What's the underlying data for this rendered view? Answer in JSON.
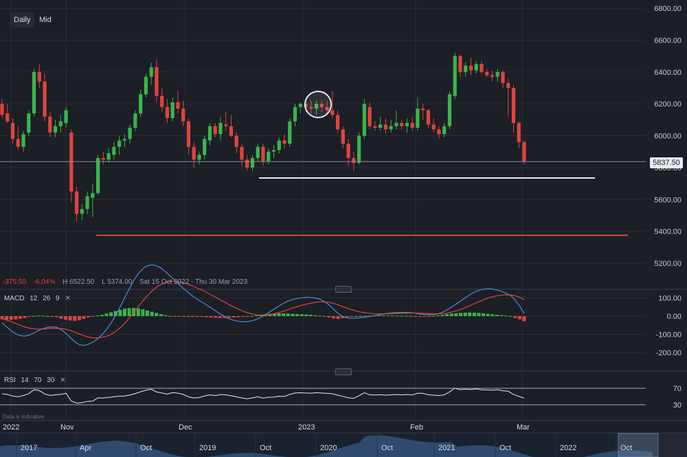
{
  "toolbar": {
    "timeframes": [
      {
        "label": "Daily",
        "active": true
      },
      {
        "label": "Mid",
        "active": false
      }
    ]
  },
  "summary": {
    "change": "-375.50",
    "change_pct": "-6.04%",
    "high": "H 6522.50",
    "low": "L 5374.00",
    "range": "Sat 15 Oct 2022 - Thu 30 Mar 2023",
    "current_price": "5837.50"
  },
  "price_axis": {
    "ticks": [
      "6800.00",
      "6600.00",
      "6400.00",
      "6200.00",
      "6000.00",
      "5800.00",
      "5600.00",
      "5400.00",
      "5200.00"
    ]
  },
  "time_axis": {
    "labels": [
      "2022",
      "Nov",
      "Dec",
      "2023",
      "Feb",
      "Mar"
    ]
  },
  "navigator": {
    "labels": [
      "2017",
      "Apr",
      "Oct",
      "2019",
      "Oct",
      "2020",
      "Oct",
      "2021",
      "Oct",
      "2022",
      "Oct"
    ]
  },
  "macd": {
    "label": "MACD",
    "params": [
      "12",
      "26",
      "9"
    ],
    "ticks": [
      "100.00",
      "0.00",
      "-100.00",
      "-200.00"
    ],
    "hist_range": [
      -60,
      90
    ],
    "histogram": [
      -35,
      -38,
      -40,
      -36,
      -30,
      -20,
      -8,
      2,
      6,
      4,
      0,
      -5,
      -12,
      -28,
      -40,
      -48,
      -52,
      -45,
      -30,
      -15,
      -5,
      5,
      15,
      28,
      42,
      55,
      70,
      82,
      88,
      90,
      85,
      75,
      62,
      48,
      35,
      22,
      10,
      2,
      -3,
      -6,
      -8,
      -9,
      -10,
      -9,
      -8,
      -12,
      -15,
      -18,
      -20,
      -20,
      -18,
      -15,
      -12,
      -8,
      -4,
      2,
      8,
      14,
      20,
      25,
      28,
      30,
      30,
      28,
      25,
      22,
      20,
      18,
      15,
      10,
      5,
      -5,
      -15,
      -25,
      -30,
      -22,
      -12,
      -5,
      0,
      2,
      3,
      5,
      6,
      7,
      8,
      7,
      6,
      5,
      4,
      3,
      2,
      -2,
      -4,
      -3,
      -1,
      2,
      8,
      15,
      22,
      28,
      32,
      35,
      38,
      40,
      38,
      35,
      30,
      25,
      20,
      15,
      10,
      5,
      0,
      -20,
      -35,
      -55
    ]
  },
  "rsi": {
    "label": "RSI",
    "params": [
      "14",
      "70",
      "30"
    ],
    "ticks": [
      "70",
      "30"
    ]
  },
  "colors": {
    "background": "#1c1f26",
    "bull": "#3bb54a",
    "bear": "#e0443d",
    "support_white": "#e8eaee",
    "support_red": "#e0443d",
    "macd_line": "#4a90d9",
    "signal_line": "#e0443d"
  },
  "chart_data": {
    "type": "candlestick",
    "ylim": [
      5100,
      6850
    ],
    "annotations": [
      {
        "type": "horizontal_line",
        "value": 5735,
        "color": "#e8eaee"
      },
      {
        "type": "horizontal_line",
        "value": 5375,
        "color": "#e0443d"
      },
      {
        "type": "horizontal_line",
        "value": 5837.5,
        "color": "#8a8f98"
      },
      {
        "type": "circle_marker",
        "value": 6200
      }
    ],
    "candles": [
      [
        6200,
        6230,
        6110,
        6130
      ],
      [
        6140,
        6200,
        6080,
        6090
      ],
      [
        6080,
        6110,
        5950,
        5980
      ],
      [
        5980,
        6060,
        5910,
        5930
      ],
      [
        5930,
        6030,
        5900,
        6010
      ],
      [
        6020,
        6160,
        6000,
        6140
      ],
      [
        6140,
        6420,
        6120,
        6400
      ],
      [
        6400,
        6450,
        6300,
        6340
      ],
      [
        6340,
        6390,
        6090,
        6120
      ],
      [
        6120,
        6150,
        5990,
        6020
      ],
      [
        6020,
        6100,
        5990,
        6060
      ],
      [
        6060,
        6130,
        6020,
        6090
      ],
      [
        6080,
        6180,
        6050,
        6160
      ],
      [
        6020,
        6040,
        5580,
        5650
      ],
      [
        5650,
        5680,
        5460,
        5510
      ],
      [
        5510,
        5570,
        5470,
        5540
      ],
      [
        5540,
        5650,
        5510,
        5620
      ],
      [
        5610,
        5700,
        5490,
        5640
      ],
      [
        5640,
        5880,
        5630,
        5860
      ],
      [
        5860,
        5900,
        5820,
        5850
      ],
      [
        5850,
        5920,
        5830,
        5890
      ],
      [
        5880,
        5960,
        5850,
        5930
      ],
      [
        5930,
        6000,
        5880,
        5970
      ],
      [
        5970,
        6010,
        5930,
        5980
      ],
      [
        5980,
        6070,
        5950,
        6050
      ],
      [
        6050,
        6160,
        6030,
        6140
      ],
      [
        6140,
        6290,
        6120,
        6260
      ],
      [
        6260,
        6390,
        6240,
        6370
      ],
      [
        6370,
        6460,
        6320,
        6430
      ],
      [
        6430,
        6480,
        6210,
        6250
      ],
      [
        6250,
        6300,
        6150,
        6180
      ],
      [
        6180,
        6230,
        6080,
        6110
      ],
      [
        6110,
        6240,
        6090,
        6210
      ],
      [
        6210,
        6280,
        6140,
        6170
      ],
      [
        6170,
        6220,
        6060,
        6090
      ],
      [
        6090,
        6110,
        5880,
        5930
      ],
      [
        5930,
        5960,
        5800,
        5850
      ],
      [
        5850,
        5900,
        5820,
        5880
      ],
      [
        5880,
        6000,
        5850,
        5980
      ],
      [
        5970,
        6080,
        5940,
        6060
      ],
      [
        6060,
        6080,
        5990,
        6010
      ],
      [
        6010,
        6120,
        5970,
        6080
      ],
      [
        6070,
        6150,
        6030,
        6060
      ],
      [
        6060,
        6130,
        5990,
        6000
      ],
      [
        6000,
        6020,
        5890,
        5930
      ],
      [
        5930,
        5950,
        5810,
        5850
      ],
      [
        5850,
        5880,
        5780,
        5800
      ],
      [
        5800,
        5880,
        5780,
        5860
      ],
      [
        5860,
        5950,
        5840,
        5930
      ],
      [
        5930,
        5950,
        5810,
        5840
      ],
      [
        5840,
        5920,
        5820,
        5900
      ],
      [
        5900,
        5940,
        5860,
        5910
      ],
      [
        5910,
        5990,
        5890,
        5970
      ],
      [
        5970,
        6010,
        5920,
        5950
      ],
      [
        5950,
        6110,
        5930,
        6090
      ],
      [
        6090,
        6200,
        6060,
        6180
      ],
      [
        6180,
        6210,
        6140,
        6200
      ],
      [
        6200,
        6220,
        6150,
        6180
      ],
      [
        6180,
        6220,
        6140,
        6170
      ],
      [
        6170,
        6220,
        6130,
        6200
      ],
      [
        6200,
        6220,
        6150,
        6180
      ],
      [
        6180,
        6220,
        6130,
        6160
      ],
      [
        6160,
        6280,
        6110,
        6130
      ],
      [
        6130,
        6160,
        6020,
        6040
      ],
      [
        6040,
        6060,
        5920,
        5950
      ],
      [
        5950,
        5980,
        5810,
        5860
      ],
      [
        5860,
        5900,
        5780,
        5830
      ],
      [
        5830,
        6020,
        5820,
        6000
      ],
      [
        6000,
        6230,
        5980,
        6200
      ],
      [
        6180,
        6210,
        6040,
        6060
      ],
      [
        6060,
        6090,
        6030,
        6050
      ],
      [
        6050,
        6120,
        6030,
        6070
      ],
      [
        6070,
        6110,
        6010,
        6040
      ],
      [
        6040,
        6100,
        6020,
        6060
      ],
      [
        6060,
        6160,
        6040,
        6080
      ],
      [
        6080,
        6100,
        6040,
        6060
      ],
      [
        6060,
        6110,
        6020,
        6080
      ],
      [
        6080,
        6120,
        6030,
        6050
      ],
      [
        6050,
        6240,
        6030,
        6170
      ],
      [
        6170,
        6200,
        6100,
        6160
      ],
      [
        6160,
        6170,
        6050,
        6070
      ],
      [
        6070,
        6110,
        6020,
        6040
      ],
      [
        6040,
        6060,
        5980,
        6010
      ],
      [
        6010,
        6080,
        5990,
        6060
      ],
      [
        6060,
        6280,
        6040,
        6260
      ],
      [
        6250,
        6520,
        6230,
        6500
      ],
      [
        6500,
        6510,
        6370,
        6400
      ],
      [
        6400,
        6460,
        6370,
        6440
      ],
      [
        6440,
        6490,
        6380,
        6410
      ],
      [
        6410,
        6470,
        6390,
        6450
      ],
      [
        6450,
        6470,
        6390,
        6400
      ],
      [
        6400,
        6420,
        6370,
        6380
      ],
      [
        6380,
        6410,
        6340,
        6370
      ],
      [
        6370,
        6420,
        6340,
        6400
      ],
      [
        6400,
        6410,
        6300,
        6330
      ],
      [
        6330,
        6360,
        6120,
        6300
      ],
      [
        6300,
        6320,
        6020,
        6080
      ],
      [
        6080,
        6090,
        5920,
        5960
      ],
      [
        5960,
        5970,
        5820,
        5837.5
      ]
    ]
  }
}
